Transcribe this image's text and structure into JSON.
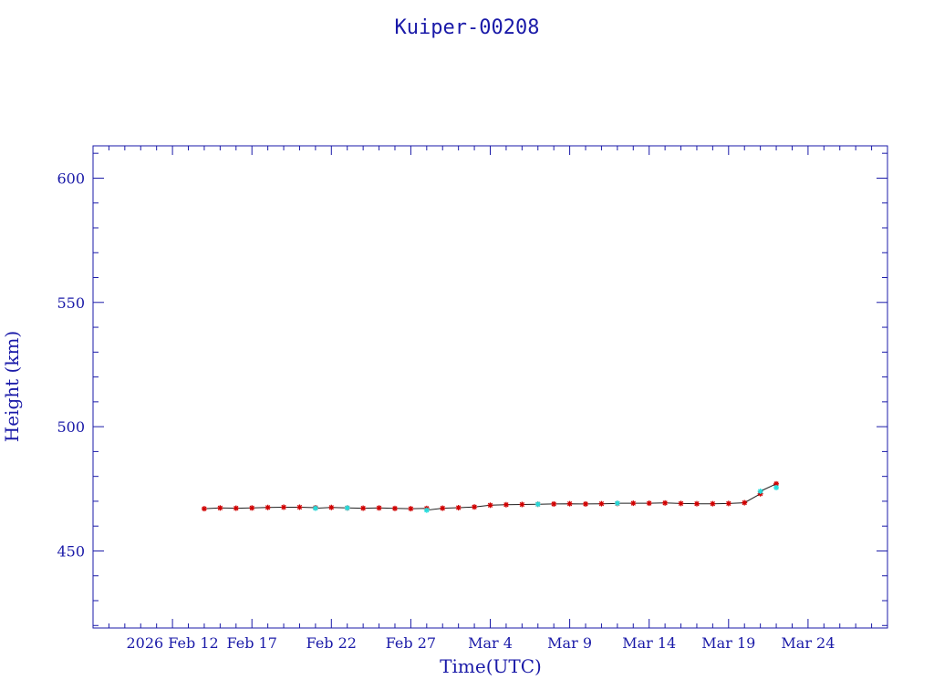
{
  "chart_data": {
    "type": "scatter",
    "title": "Kuiper-00208",
    "xlabel": "Time(UTC)",
    "ylabel": "Height (km)",
    "x_tick_labels": [
      "2026 Feb 12",
      "Feb 17",
      "Feb 22",
      "Feb 27",
      "Mar  4",
      "Mar  9",
      "Mar 14",
      "Mar 19",
      "Mar 24"
    ],
    "x_ticks": [
      "2026-02-12",
      "2026-02-17",
      "2026-02-22",
      "2026-02-27",
      "2026-03-04",
      "2026-03-09",
      "2026-03-14",
      "2026-03-19",
      "2026-03-24"
    ],
    "xlim": [
      "2026-02-07",
      "2026-03-29"
    ],
    "y_ticks": [
      450,
      500,
      550,
      600
    ],
    "ylim": [
      419,
      613
    ],
    "grid": false,
    "colors": {
      "axes": "#1a1aa8",
      "series_a": "#d00000",
      "series_b": "#22dddd",
      "line": "#202020"
    },
    "series": [
      {
        "marker_color": "#d00000",
        "points": [
          [
            "2026-02-14",
            467.0
          ],
          [
            "2026-02-15",
            467.3
          ],
          [
            "2026-02-16",
            467.2
          ],
          [
            "2026-02-17",
            467.3
          ],
          [
            "2026-02-18",
            467.5
          ],
          [
            "2026-02-19",
            467.6
          ],
          [
            "2026-02-20",
            467.6
          ],
          [
            "2026-02-21",
            467.4
          ],
          [
            "2026-02-22",
            467.5
          ],
          [
            "2026-02-23",
            467.3
          ],
          [
            "2026-02-24",
            467.2
          ],
          [
            "2026-02-25",
            467.3
          ],
          [
            "2026-02-26",
            467.1
          ],
          [
            "2026-02-27",
            467.0
          ],
          [
            "2026-02-28",
            467.1
          ],
          [
            "2026-03-01",
            467.2
          ],
          [
            "2026-03-02",
            467.4
          ],
          [
            "2026-03-03",
            467.7
          ],
          [
            "2026-03-04",
            468.4
          ],
          [
            "2026-03-05",
            468.6
          ],
          [
            "2026-03-06",
            468.7
          ],
          [
            "2026-03-07",
            468.8
          ],
          [
            "2026-03-08",
            468.9
          ],
          [
            "2026-03-09",
            469.0
          ],
          [
            "2026-03-10",
            468.9
          ],
          [
            "2026-03-11",
            469.0
          ],
          [
            "2026-03-12",
            469.1
          ],
          [
            "2026-03-13",
            469.2
          ],
          [
            "2026-03-14",
            469.2
          ],
          [
            "2026-03-15",
            469.3
          ],
          [
            "2026-03-16",
            469.1
          ],
          [
            "2026-03-17",
            469.0
          ],
          [
            "2026-03-18",
            469.0
          ],
          [
            "2026-03-19",
            469.1
          ],
          [
            "2026-03-20",
            469.4
          ],
          [
            "2026-03-21",
            473.0
          ],
          [
            "2026-03-22",
            477.0
          ]
        ]
      },
      {
        "marker_color": "#22dddd",
        "points": [
          [
            "2026-02-21",
            467.2
          ],
          [
            "2026-02-23",
            467.3
          ],
          [
            "2026-02-28",
            466.4
          ],
          [
            "2026-03-07",
            468.8
          ],
          [
            "2026-03-12",
            469.2
          ],
          [
            "2026-03-21",
            474.0
          ],
          [
            "2026-03-22",
            475.5
          ]
        ]
      }
    ]
  }
}
